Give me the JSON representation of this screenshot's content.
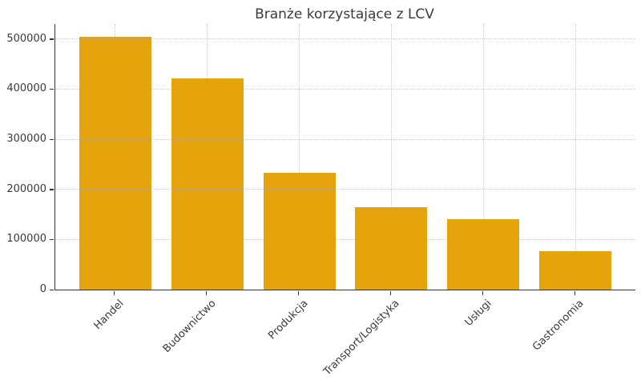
{
  "chart_data": {
    "type": "bar",
    "title": "Branże korzystające z LCV",
    "categories": [
      "Handel",
      "Budownictwo",
      "Produkcja",
      "Transport/Logistyka",
      "Usługi",
      "Gastronomia"
    ],
    "values": [
      505000,
      422000,
      233000,
      164000,
      141000,
      77000
    ],
    "xlabel": "",
    "ylabel": "",
    "ylim": [
      0,
      530000
    ],
    "yticks": [
      0,
      100000,
      200000,
      300000,
      400000,
      500000
    ],
    "ytick_labels": [
      "0",
      "100000",
      "200000",
      "300000",
      "400000",
      "500000"
    ],
    "legend": "none",
    "grid": "horizontal and vertical dotted gridlines at ticks and category centers",
    "xtick_rotation_deg": 45
  },
  "colors": {
    "bar": "#E5A40B",
    "axis": "#333333",
    "grid": "#a0a0a0",
    "text": "#3a3a3a",
    "background": "#ffffff"
  }
}
